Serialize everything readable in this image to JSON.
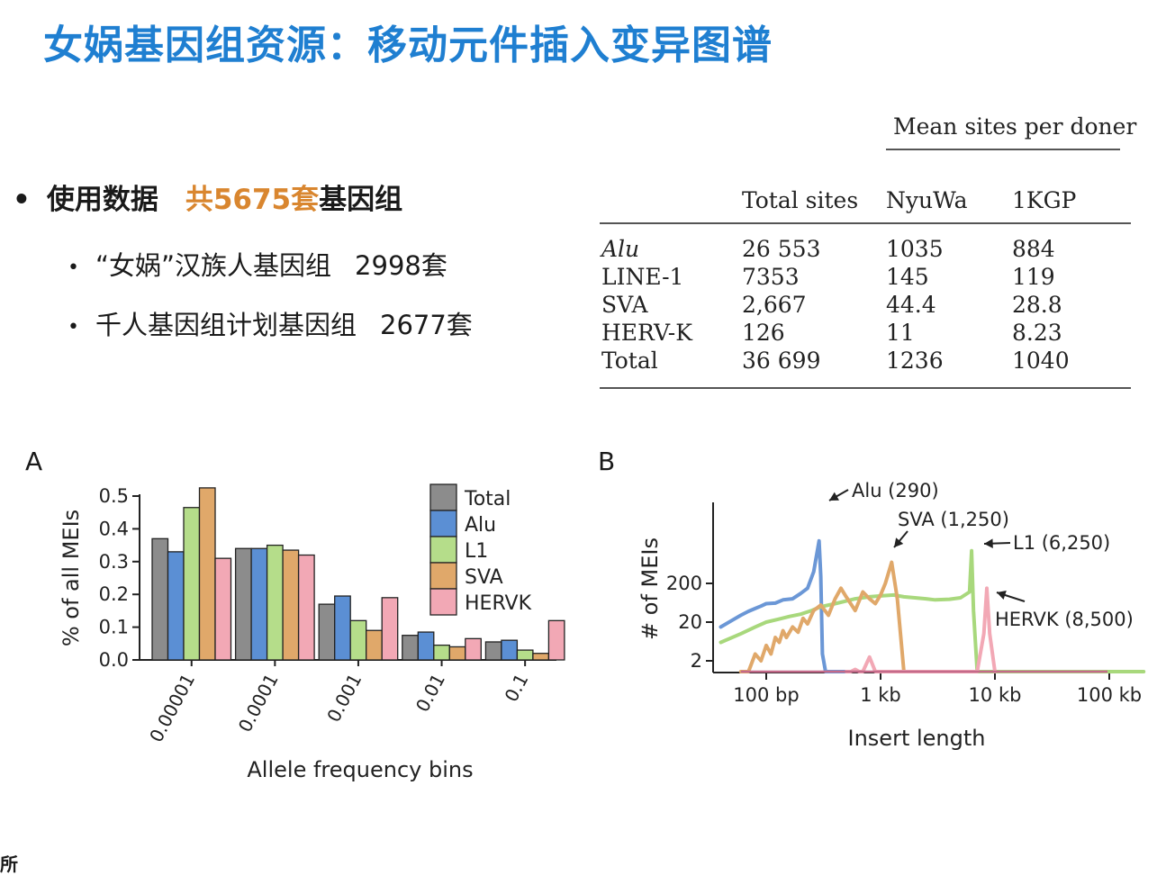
{
  "title": "女娲基因组资源：移动元件插入变异图谱",
  "bullets": {
    "main_label": "使用数据",
    "main_highlight": "共5675套",
    "main_rest": "基因组",
    "sub": [
      {
        "label": "“女娲”汉族人基因组",
        "count": "2998套"
      },
      {
        "label": "千人基因组计划基因组",
        "count": "2677套"
      }
    ]
  },
  "table": {
    "span_header": "Mean sites per doner",
    "headers": [
      "Total sites",
      "NyuWa",
      "1KGP"
    ],
    "rows": [
      {
        "name": "Alu",
        "italic": true,
        "cells": [
          "26 553",
          "1035",
          "884"
        ]
      },
      {
        "name": "LINE-1",
        "italic": false,
        "cells": [
          "7353",
          "145",
          "119"
        ]
      },
      {
        "name": "SVA",
        "italic": false,
        "cells": [
          "2,667",
          "44.4",
          "28.8"
        ]
      },
      {
        "name": "HERV-K",
        "italic": false,
        "cells": [
          "126",
          "11",
          "8.23"
        ]
      },
      {
        "name": "Total",
        "italic": false,
        "cells": [
          "36 699",
          "1236",
          "1040"
        ]
      }
    ]
  },
  "chart_data": [
    {
      "panel": "A",
      "type": "bar",
      "categories": [
        "0.00001",
        "0.0001",
        "0.001",
        "0.01",
        "0.1"
      ],
      "series": [
        {
          "name": "Total",
          "color": "#8c8c8c",
          "values": [
            0.37,
            0.34,
            0.17,
            0.075,
            0.055
          ]
        },
        {
          "name": "Alu",
          "color": "#5b8fd4",
          "values": [
            0.33,
            0.34,
            0.195,
            0.085,
            0.06
          ]
        },
        {
          "name": "L1",
          "color": "#b5dd8a",
          "values": [
            0.465,
            0.35,
            0.12,
            0.045,
            0.03
          ]
        },
        {
          "name": "SVA",
          "color": "#e0a86a",
          "values": [
            0.525,
            0.335,
            0.09,
            0.04,
            0.02
          ]
        },
        {
          "name": "HERVK",
          "color": "#f2a8b5",
          "values": [
            0.31,
            0.32,
            0.19,
            0.065,
            0.12
          ]
        }
      ],
      "xlabel": "Allele frequency bins",
      "ylabel": "% of all MEIs",
      "ylim": [
        0,
        0.5
      ],
      "yticks": [
        "0.0",
        "0.1",
        "0.2",
        "0.3",
        "0.4",
        "0.5"
      ],
      "legend": "top-right"
    },
    {
      "panel": "B",
      "type": "line",
      "xscale": "log",
      "xlabel": "Insert length",
      "ylabel": "# of MEIs",
      "xticks": [
        "100 bp",
        "1 kb",
        "10 kb",
        "100 kb"
      ],
      "yticks": [
        "2",
        "20",
        "200"
      ],
      "series": [
        {
          "name": "Alu",
          "color": "#6b97d6",
          "x": [
            40,
            50,
            60,
            70,
            80,
            90,
            100,
            120,
            140,
            170,
            200,
            230,
            260,
            290,
            300,
            310,
            330,
            350,
            400,
            450,
            500
          ],
          "y": [
            15,
            22,
            30,
            38,
            45,
            52,
            60,
            62,
            75,
            80,
            110,
            150,
            400,
            2500,
            300,
            3,
            0.5,
            0.5,
            0.5,
            0.5,
            0.5
          ]
        },
        {
          "name": "L1",
          "color": "#a8d87c",
          "x": [
            40,
            60,
            80,
            100,
            130,
            160,
            200,
            250,
            300,
            400,
            500,
            600,
            800,
            1000,
            1300,
            1600,
            2000,
            2500,
            3000,
            4000,
            5000,
            6000,
            6250,
            6500,
            7000,
            10000,
            30000,
            100000,
            200000
          ],
          "y": [
            6,
            10,
            15,
            20,
            24,
            28,
            32,
            40,
            50,
            60,
            70,
            80,
            90,
            95,
            100,
            90,
            85,
            80,
            75,
            78,
            85,
            120,
            1400,
            40,
            0.5,
            0.5,
            0.5,
            0.5,
            0.5
          ]
        },
        {
          "name": "SVA",
          "color": "#e0a86a",
          "x": [
            60,
            70,
            80,
            90,
            100,
            110,
            120,
            130,
            140,
            150,
            170,
            190,
            210,
            230,
            260,
            300,
            350,
            400,
            450,
            500,
            600,
            700,
            800,
            900,
            1000,
            1100,
            1250,
            1400,
            1600,
            1800
          ],
          "y": [
            0.5,
            1,
            3,
            2,
            5,
            3,
            8,
            6,
            12,
            8,
            15,
            11,
            25,
            18,
            40,
            55,
            30,
            80,
            150,
            90,
            40,
            120,
            80,
            60,
            100,
            200,
            700,
            80,
            0.5,
            0.5
          ]
        },
        {
          "name": "HERVK",
          "color": "#f2a8b5",
          "x": [
            500,
            550,
            600,
            650,
            700,
            800,
            900,
            1000,
            7000,
            8000,
            8500,
            9000,
            10000
          ],
          "y": [
            0.5,
            0.8,
            1.2,
            0.7,
            0.5,
            2.5,
            0.6,
            0.5,
            0.5,
            10,
            150,
            10,
            0.5
          ]
        }
      ],
      "annotations": [
        "Alu (290)",
        "SVA (1,250)",
        "L1 (6,250)",
        "HERVK (8,500)"
      ]
    }
  ]
}
